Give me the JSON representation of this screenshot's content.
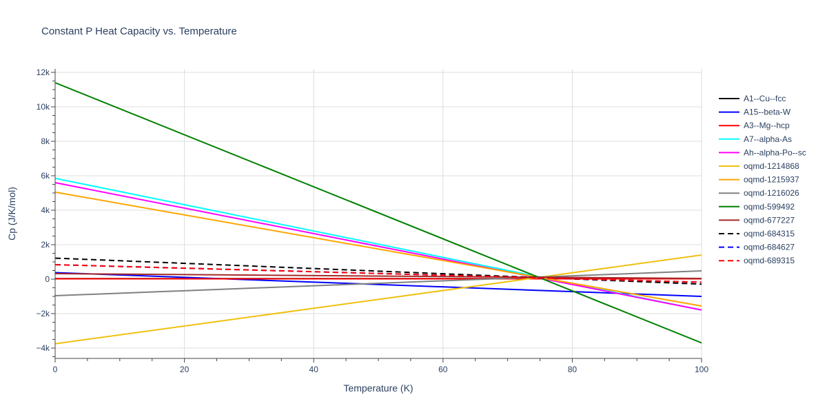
{
  "chart_data": {
    "type": "line",
    "title": "Constant P Heat Capacity vs. Temperature",
    "xlabel": "Temperature (K)",
    "ylabel": "Cp (J/K/mol)",
    "xlim": [
      0,
      100
    ],
    "ylim": [
      -4600,
      12200
    ],
    "x_ticks": [
      0,
      20,
      40,
      60,
      80,
      100
    ],
    "x_tick_labels": [
      "0",
      "20",
      "40",
      "60",
      "80",
      "100"
    ],
    "y_ticks": [
      -4000,
      -2000,
      0,
      2000,
      4000,
      6000,
      8000,
      10000,
      12000
    ],
    "y_tick_labels": [
      "−4k",
      "−2k",
      "0",
      "2k",
      "4k",
      "6k",
      "8k",
      "10k",
      "12k"
    ],
    "grid": true,
    "legend_placement": "right",
    "x": [
      0,
      100
    ],
    "series": [
      {
        "name": "A1--Cu--fcc",
        "values": [
          30,
          30
        ],
        "color": "#000000",
        "dash": false
      },
      {
        "name": "A15--beta-W",
        "values": [
          380,
          -1000
        ],
        "color": "#0000ff",
        "dash": false
      },
      {
        "name": "A3--Mg--hcp",
        "values": [
          20,
          20
        ],
        "color": "#ff0000",
        "dash": false
      },
      {
        "name": "A7--alpha-As",
        "values": [
          5850,
          -1790
        ],
        "color": "#00ffff",
        "dash": false
      },
      {
        "name": "Ah--alpha-Po--sc",
        "values": [
          5600,
          -1790
        ],
        "color": "#ff00ff",
        "dash": false
      },
      {
        "name": "oqmd-1214868",
        "values": [
          -3750,
          1400
        ],
        "color": "#f0c010",
        "dash": false
      },
      {
        "name": "oqmd-1215937",
        "values": [
          5050,
          -1560
        ],
        "color": "#ffa500",
        "dash": false
      },
      {
        "name": "oqmd-1216026",
        "values": [
          -960,
          480
        ],
        "color": "#808080",
        "dash": false
      },
      {
        "name": "oqmd-599492",
        "values": [
          11400,
          -3700
        ],
        "color": "#008000",
        "dash": false
      },
      {
        "name": "oqmd-677227",
        "values": [
          320,
          40
        ],
        "color": "#a52a2a",
        "dash": false
      },
      {
        "name": "oqmd-684315",
        "values": [
          1220,
          -290
        ],
        "color": "#000000",
        "dash": true
      },
      {
        "name": "oqmd-684627",
        "values": [
          840,
          -180
        ],
        "color": "#0000ff",
        "dash": true
      },
      {
        "name": "oqmd-689315",
        "values": [
          840,
          -180
        ],
        "color": "#ff0000",
        "dash": true
      }
    ]
  }
}
